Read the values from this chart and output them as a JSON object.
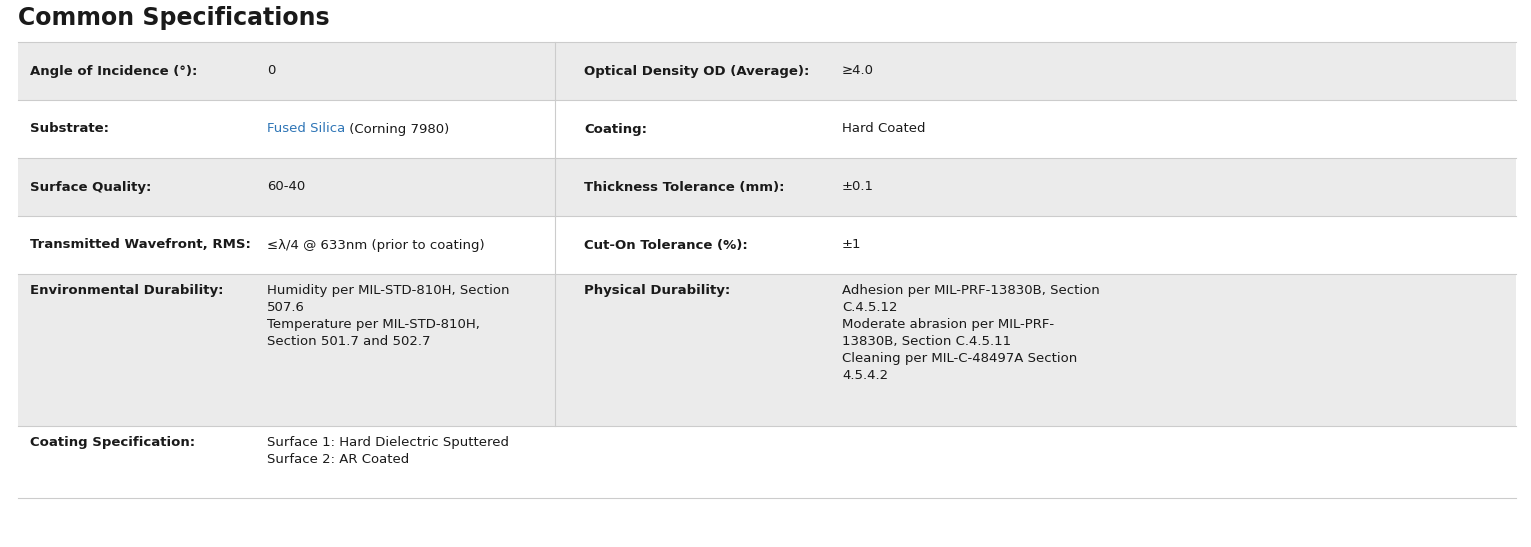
{
  "title": "Common Specifications",
  "title_fontsize": 17,
  "title_color": "#1a1a1a",
  "title_font_weight": "bold",
  "background_color": "#ffffff",
  "row_bg_shaded": "#ebebeb",
  "row_bg_white": "#ffffff",
  "border_color": "#cccccc",
  "label_color": "#1a1a1a",
  "value_color": "#1a1a1a",
  "link_color": "#2e75b6",
  "label_fontsize": 9.5,
  "value_fontsize": 9.5,
  "figw": 15.31,
  "figh": 5.47,
  "dpi": 100,
  "rows": [
    {
      "left_label": "Angle of Incidence (°):",
      "left_value_parts": [
        {
          "text": "0",
          "color": "#1a1a1a"
        }
      ],
      "right_label": "Optical Density OD (Average):",
      "right_value": "≥4.0",
      "shaded": true,
      "multiline": false
    },
    {
      "left_label": "Substrate:",
      "left_value_parts": [
        {
          "text": "Fused Silica",
          "color": "#2e75b6"
        },
        {
          "text": " (Corning 7980)",
          "color": "#1a1a1a"
        }
      ],
      "right_label": "Coating:",
      "right_value": "Hard Coated",
      "shaded": false,
      "multiline": false
    },
    {
      "left_label": "Surface Quality:",
      "left_value_parts": [
        {
          "text": "60-40",
          "color": "#1a1a1a"
        }
      ],
      "right_label": "Thickness Tolerance (mm):",
      "right_value": "±0.1",
      "shaded": true,
      "multiline": false
    },
    {
      "left_label": "Transmitted Wavefront, RMS:",
      "left_value_parts": [
        {
          "text": "≤λ/4 @ 633nm (prior to coating)",
          "color": "#1a1a1a"
        }
      ],
      "right_label": "Cut-On Tolerance (%):",
      "right_value": "±1",
      "shaded": false,
      "multiline": false
    },
    {
      "left_label": "Environmental Durability:",
      "left_value_parts": [
        {
          "text": "Humidity per MIL-STD-810H, Section\n507.6\nTemperature per MIL-STD-810H,\nSection 501.7 and 502.7",
          "color": "#1a1a1a"
        }
      ],
      "right_label": "Physical Durability:",
      "right_value": "Adhesion per MIL-PRF-13830B, Section\nC.4.5.12\nModerate abrasion per MIL-PRF-\n13830B, Section C.4.5.11\nCleaning per MIL-C-48497A Section\n4.5.4.2",
      "shaded": true,
      "multiline": true
    },
    {
      "left_label": "Coating Specification:",
      "left_value_parts": [
        {
          "text": "Surface 1: Hard Dielectric Sputtered\nSurface 2: AR Coated",
          "color": "#1a1a1a"
        }
      ],
      "right_label": "",
      "right_value": "",
      "shaded": false,
      "multiline": true,
      "bottom": true
    }
  ]
}
